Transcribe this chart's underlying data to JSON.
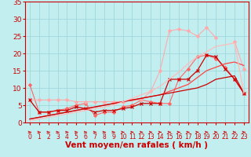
{
  "xlabel": "Vent moyen/en rafales ( km/h )",
  "x_values": [
    0,
    1,
    2,
    3,
    4,
    5,
    6,
    7,
    8,
    9,
    10,
    11,
    12,
    13,
    14,
    15,
    16,
    17,
    18,
    19,
    20,
    21,
    22,
    23
  ],
  "ylim": [
    0,
    35
  ],
  "xlim": [
    -0.5,
    23.5
  ],
  "yticks": [
    0,
    5,
    10,
    15,
    20,
    25,
    30,
    35
  ],
  "background_color": "#c2eef0",
  "grid_color": "#a0d8dc",
  "series": [
    {
      "color": "#ff6666",
      "marker": "D",
      "markersize": 2.0,
      "linewidth": 0.8,
      "values": [
        11,
        3,
        3,
        3.5,
        4,
        5,
        5.5,
        2,
        3,
        3,
        4.5,
        5,
        6.5,
        6,
        5.5,
        5.5,
        12.5,
        15.5,
        19,
        19.5,
        18.5,
        16,
        12.5,
        8.5
      ]
    },
    {
      "color": "#ffaaaa",
      "marker": "D",
      "markersize": 2.0,
      "linewidth": 0.8,
      "values": [
        6.5,
        6.5,
        6.5,
        6.5,
        6.5,
        6,
        6,
        6,
        6,
        6,
        6,
        6.5,
        6.5,
        9,
        15,
        26.5,
        27,
        26.5,
        25,
        27.5,
        24.5,
        null,
        23.5,
        15.5
      ]
    },
    {
      "color": "#cc0000",
      "marker": "x",
      "markersize": 3,
      "linewidth": 0.9,
      "values": [
        6.5,
        3,
        3,
        3.5,
        3.5,
        4.5,
        4,
        3,
        3.5,
        3.5,
        4,
        4.5,
        5.5,
        5.5,
        5.5,
        12.5,
        12.5,
        12.5,
        15,
        19.5,
        19,
        15.5,
        12.5,
        8.5
      ]
    },
    {
      "color": "#ff4444",
      "marker": null,
      "linewidth": 0.9,
      "values": [
        1,
        1.5,
        2,
        2.5,
        3,
        3.5,
        4,
        4.5,
        5,
        5.5,
        6,
        6.5,
        7,
        7.5,
        8,
        9,
        10,
        11,
        13,
        15,
        16,
        17,
        17.5,
        16.5
      ]
    },
    {
      "color": "#cc0000",
      "marker": null,
      "linewidth": 0.9,
      "values": [
        1,
        1.5,
        2,
        2.5,
        3,
        3.5,
        4,
        4.5,
        5,
        5.5,
        6,
        6.5,
        7,
        7.5,
        8,
        8.5,
        9,
        9.5,
        10,
        11,
        12.5,
        13,
        13.5,
        8.5
      ]
    },
    {
      "color": "#ffbbbb",
      "marker": null,
      "linewidth": 0.9,
      "values": [
        0.5,
        1,
        1.5,
        2,
        2.5,
        3,
        3.5,
        4,
        4.5,
        5,
        6,
        7,
        8,
        9,
        10.5,
        12.5,
        14.5,
        17,
        19,
        20.5,
        22,
        22.5,
        23,
        8.5
      ]
    }
  ],
  "tick_label_color": "#cc0000",
  "axis_label_color": "#cc0000",
  "tick_label_fontsize": 5.5,
  "axis_label_fontsize": 7.5,
  "ytick_fontsize": 6.5
}
